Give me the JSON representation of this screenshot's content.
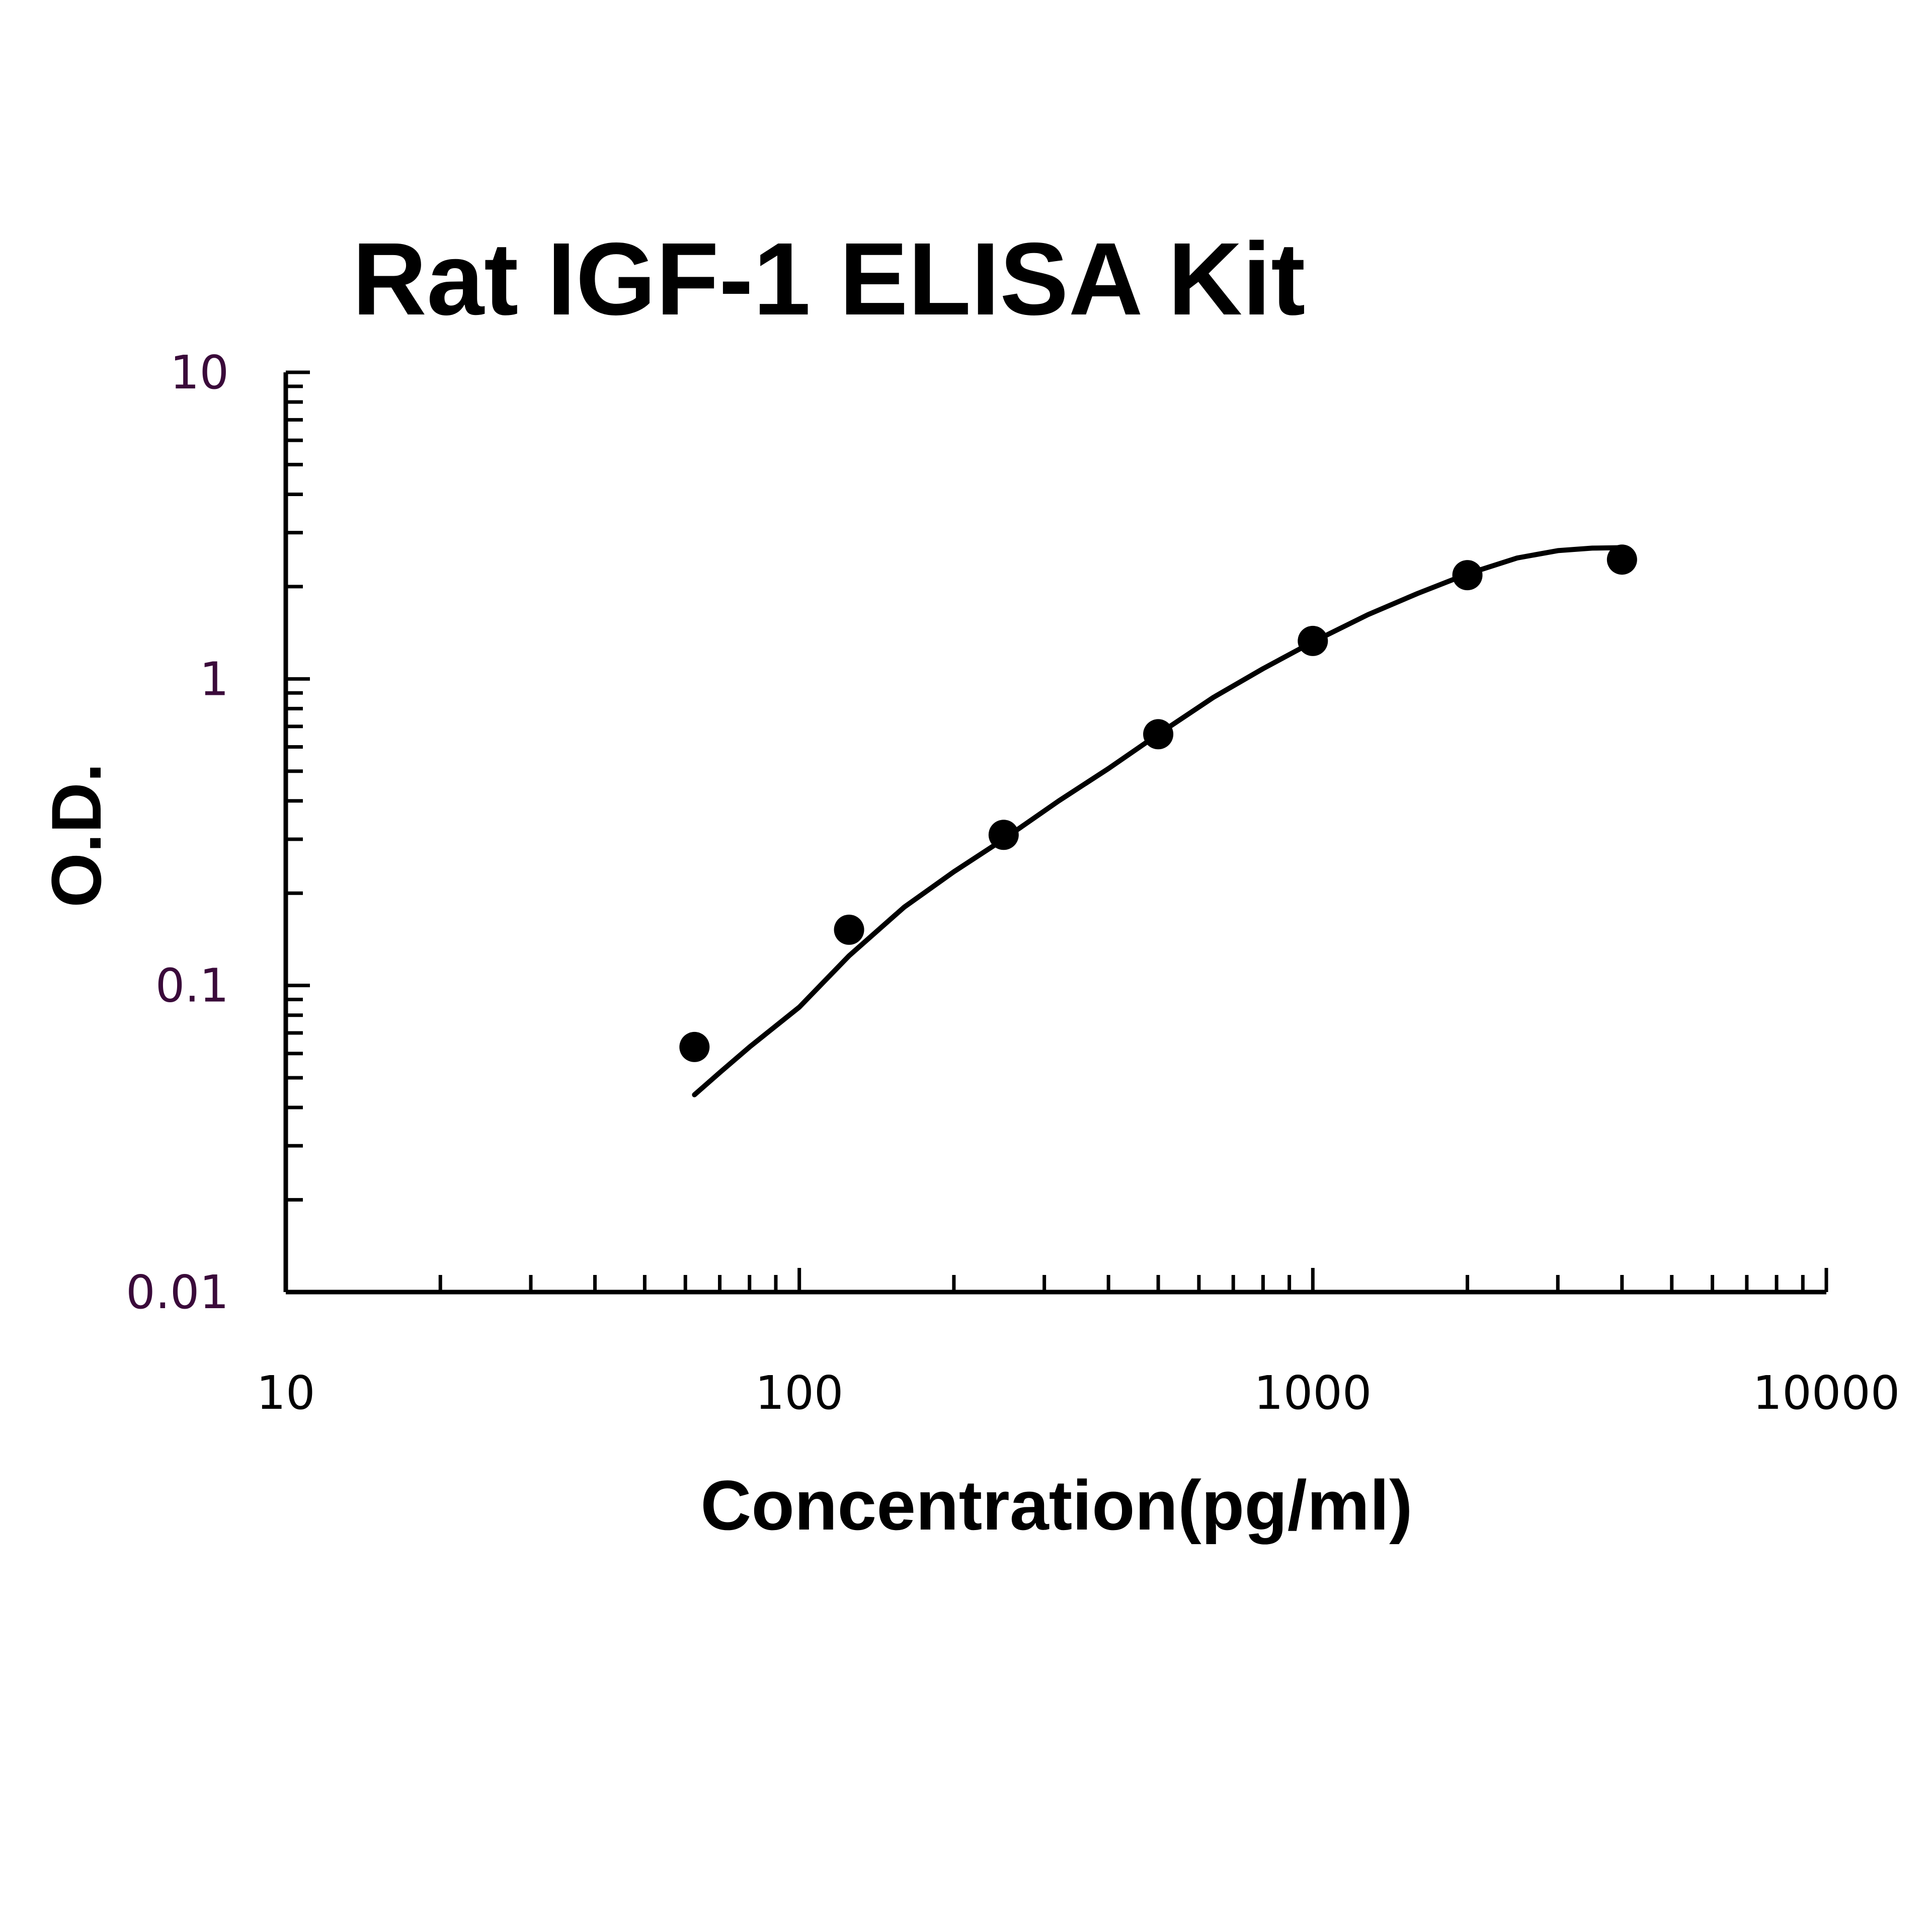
{
  "chart_data": {
    "type": "scatter",
    "title": "Rat IGF-1 ELISA Kit",
    "xlabel": "Concentration(pg/ml)",
    "ylabel": "O.D.",
    "xscale": "log",
    "yscale": "log",
    "xlim": [
      10,
      10000
    ],
    "ylim": [
      0.01,
      10
    ],
    "x_ticks": [
      "10",
      "100",
      "1000",
      "10000"
    ],
    "y_ticks": [
      "0.01",
      "0.1",
      "1",
      "10"
    ],
    "grid": false,
    "legend": "none",
    "series": [
      {
        "x": [
          62.5,
          125,
          250,
          500,
          1000,
          2000,
          4000
        ],
        "y": [
          0.063,
          0.152,
          0.31,
          0.66,
          1.33,
          2.18,
          2.45
        ]
      }
    ],
    "fit_curve": {
      "x": [
        62.5,
        70,
        80,
        100,
        125,
        160,
        200,
        250,
        320,
        400,
        500,
        640,
        800,
        1000,
        1280,
        1600,
        2000,
        2500,
        3000,
        3500,
        4000
      ],
      "y": [
        0.044,
        0.052,
        0.063,
        0.085,
        0.125,
        0.18,
        0.235,
        0.3,
        0.4,
        0.51,
        0.66,
        0.87,
        1.08,
        1.32,
        1.62,
        1.9,
        2.2,
        2.48,
        2.62,
        2.67,
        2.68
      ]
    },
    "colors": {
      "axis": "#000000",
      "points": "#000000",
      "curve": "#000000",
      "y_tick_text": "#3a0a3a"
    }
  }
}
